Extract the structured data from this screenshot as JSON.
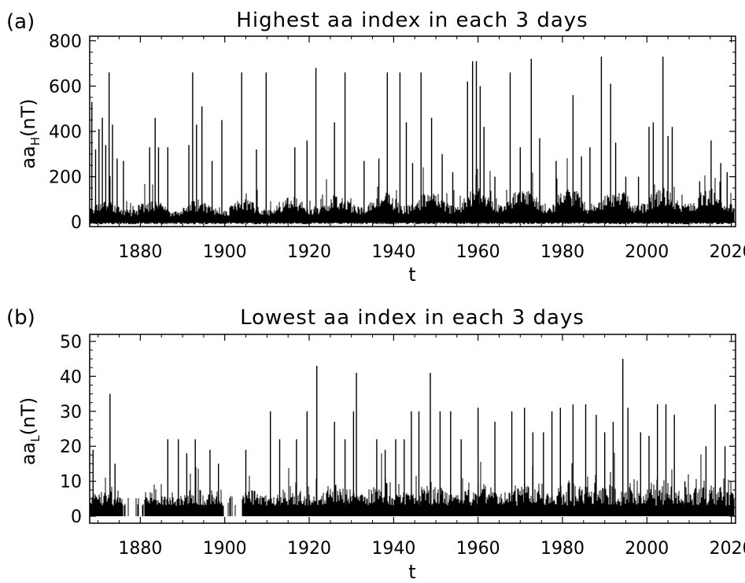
{
  "chart_data": [
    {
      "type": "line",
      "panel_label": "(a)",
      "title": "Highest aa index in each 3 days",
      "xlabel": "t",
      "ylabel_main": "aa",
      "ylabel_sub": "H",
      "ylabel_unit": "(nT)",
      "xlim": [
        1868,
        2021
      ],
      "ylim": [
        -20,
        820
      ],
      "x_ticks": [
        1880,
        1900,
        1920,
        1940,
        1960,
        1980,
        2000,
        2020
      ],
      "y_ticks": [
        0,
        200,
        400,
        600,
        800
      ],
      "grid": false,
      "spikes": [
        {
          "x": 1868.5,
          "y": 530
        },
        {
          "x": 1869.4,
          "y": 320
        },
        {
          "x": 1870.2,
          "y": 410
        },
        {
          "x": 1871.0,
          "y": 460
        },
        {
          "x": 1871.8,
          "y": 340
        },
        {
          "x": 1872.6,
          "y": 660
        },
        {
          "x": 1873.4,
          "y": 430
        },
        {
          "x": 1874.5,
          "y": 280
        },
        {
          "x": 1876.0,
          "y": 270
        },
        {
          "x": 1882.2,
          "y": 330
        },
        {
          "x": 1883.5,
          "y": 460
        },
        {
          "x": 1884.3,
          "y": 330
        },
        {
          "x": 1886.5,
          "y": 330
        },
        {
          "x": 1891.5,
          "y": 340
        },
        {
          "x": 1892.4,
          "y": 660
        },
        {
          "x": 1893.3,
          "y": 430
        },
        {
          "x": 1894.6,
          "y": 510
        },
        {
          "x": 1897.0,
          "y": 270
        },
        {
          "x": 1899.3,
          "y": 450
        },
        {
          "x": 1904.0,
          "y": 660
        },
        {
          "x": 1907.5,
          "y": 320
        },
        {
          "x": 1909.8,
          "y": 660
        },
        {
          "x": 1916.6,
          "y": 330
        },
        {
          "x": 1919.5,
          "y": 360
        },
        {
          "x": 1921.6,
          "y": 680
        },
        {
          "x": 1926.0,
          "y": 440
        },
        {
          "x": 1928.5,
          "y": 660
        },
        {
          "x": 1933.0,
          "y": 270
        },
        {
          "x": 1936.5,
          "y": 280
        },
        {
          "x": 1938.5,
          "y": 660
        },
        {
          "x": 1941.5,
          "y": 660
        },
        {
          "x": 1943.0,
          "y": 440
        },
        {
          "x": 1944.5,
          "y": 260
        },
        {
          "x": 1946.5,
          "y": 660
        },
        {
          "x": 1949.0,
          "y": 460
        },
        {
          "x": 1951.5,
          "y": 300
        },
        {
          "x": 1954.0,
          "y": 220
        },
        {
          "x": 1957.5,
          "y": 620
        },
        {
          "x": 1958.7,
          "y": 710
        },
        {
          "x": 1959.6,
          "y": 710
        },
        {
          "x": 1960.5,
          "y": 600
        },
        {
          "x": 1961.4,
          "y": 420
        },
        {
          "x": 1964.0,
          "y": 200
        },
        {
          "x": 1967.6,
          "y": 660
        },
        {
          "x": 1970.0,
          "y": 330
        },
        {
          "x": 1972.6,
          "y": 720
        },
        {
          "x": 1974.6,
          "y": 370
        },
        {
          "x": 1978.5,
          "y": 270
        },
        {
          "x": 1982.5,
          "y": 560
        },
        {
          "x": 1984.5,
          "y": 290
        },
        {
          "x": 1986.5,
          "y": 330
        },
        {
          "x": 1989.2,
          "y": 730
        },
        {
          "x": 1991.4,
          "y": 610
        },
        {
          "x": 1992.6,
          "y": 350
        },
        {
          "x": 1995.0,
          "y": 200
        },
        {
          "x": 1998.0,
          "y": 200
        },
        {
          "x": 2000.5,
          "y": 420
        },
        {
          "x": 2001.5,
          "y": 440
        },
        {
          "x": 2003.8,
          "y": 730
        },
        {
          "x": 2005.0,
          "y": 380
        },
        {
          "x": 2006.0,
          "y": 420
        },
        {
          "x": 2012.5,
          "y": 180
        },
        {
          "x": 2015.2,
          "y": 360
        },
        {
          "x": 2017.5,
          "y": 260
        },
        {
          "x": 2019.0,
          "y": 220
        }
      ]
    },
    {
      "type": "line",
      "panel_label": "(b)",
      "title": "Lowest aa index in each 3 days",
      "xlabel": "t",
      "ylabel_main": "aa",
      "ylabel_sub": "L",
      "ylabel_unit": "(nT)",
      "xlim": [
        1868,
        2021
      ],
      "ylim": [
        -2,
        52
      ],
      "x_ticks": [
        1880,
        1900,
        1920,
        1940,
        1960,
        1980,
        2000,
        2020
      ],
      "y_ticks": [
        0,
        10,
        20,
        30,
        40,
        50
      ],
      "grid": false,
      "spikes": [
        {
          "x": 1868.8,
          "y": 19
        },
        {
          "x": 1872.8,
          "y": 35
        },
        {
          "x": 1874.0,
          "y": 15
        },
        {
          "x": 1886.5,
          "y": 22
        },
        {
          "x": 1889.0,
          "y": 22
        },
        {
          "x": 1891.0,
          "y": 18
        },
        {
          "x": 1893.0,
          "y": 22
        },
        {
          "x": 1896.5,
          "y": 19
        },
        {
          "x": 1898.5,
          "y": 15
        },
        {
          "x": 1905.0,
          "y": 19
        },
        {
          "x": 1910.8,
          "y": 30
        },
        {
          "x": 1913.0,
          "y": 22
        },
        {
          "x": 1917.0,
          "y": 22
        },
        {
          "x": 1919.5,
          "y": 30
        },
        {
          "x": 1921.8,
          "y": 43
        },
        {
          "x": 1926.0,
          "y": 27
        },
        {
          "x": 1928.5,
          "y": 22
        },
        {
          "x": 1930.5,
          "y": 30
        },
        {
          "x": 1931.2,
          "y": 41
        },
        {
          "x": 1936.0,
          "y": 22
        },
        {
          "x": 1938.0,
          "y": 19
        },
        {
          "x": 1940.5,
          "y": 22
        },
        {
          "x": 1942.5,
          "y": 22
        },
        {
          "x": 1944.2,
          "y": 30
        },
        {
          "x": 1946.0,
          "y": 30
        },
        {
          "x": 1948.7,
          "y": 41
        },
        {
          "x": 1951.0,
          "y": 30
        },
        {
          "x": 1953.5,
          "y": 30
        },
        {
          "x": 1956.0,
          "y": 22
        },
        {
          "x": 1960.0,
          "y": 31
        },
        {
          "x": 1964.0,
          "y": 27
        },
        {
          "x": 1968.0,
          "y": 30
        },
        {
          "x": 1971.0,
          "y": 31
        },
        {
          "x": 1973.0,
          "y": 24
        },
        {
          "x": 1975.5,
          "y": 24
        },
        {
          "x": 1977.5,
          "y": 30
        },
        {
          "x": 1979.5,
          "y": 31
        },
        {
          "x": 1982.5,
          "y": 32
        },
        {
          "x": 1985.5,
          "y": 32
        },
        {
          "x": 1988.0,
          "y": 29
        },
        {
          "x": 1990.0,
          "y": 24
        },
        {
          "x": 1992.0,
          "y": 27
        },
        {
          "x": 1994.3,
          "y": 45
        },
        {
          "x": 1995.5,
          "y": 31
        },
        {
          "x": 1998.5,
          "y": 24
        },
        {
          "x": 2000.5,
          "y": 23
        },
        {
          "x": 2002.5,
          "y": 32
        },
        {
          "x": 2004.5,
          "y": 32
        },
        {
          "x": 2006.5,
          "y": 29
        },
        {
          "x": 2009.0,
          "y": 10
        },
        {
          "x": 2014.0,
          "y": 20
        },
        {
          "x": 2016.2,
          "y": 32
        },
        {
          "x": 2018.5,
          "y": 20
        }
      ]
    }
  ]
}
